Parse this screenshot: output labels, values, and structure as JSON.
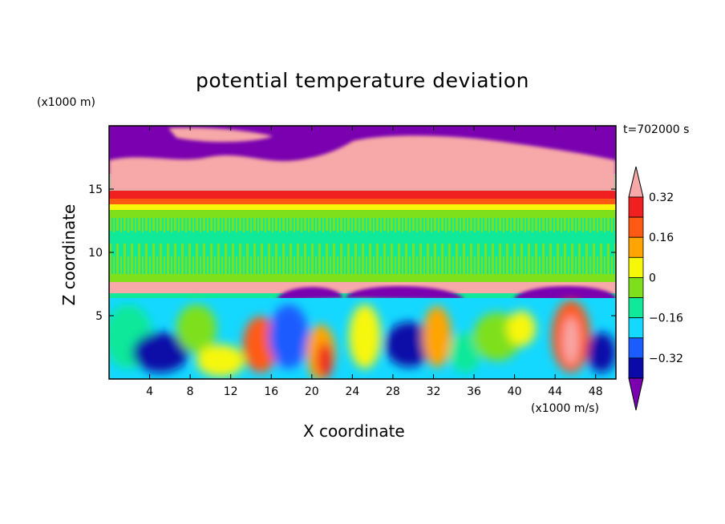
{
  "chart_data": {
    "type": "heatmap",
    "title": "potential temperature deviation",
    "xlabel": "X coordinate",
    "ylabel": "Z coordinate",
    "x_unit": "(x1000 m/s)",
    "y_unit": "(x1000 m)",
    "time_label": "t=702000 s",
    "xlim": [
      0,
      50
    ],
    "ylim": [
      0,
      20
    ],
    "x_ticks": [
      4,
      8,
      12,
      16,
      20,
      24,
      28,
      32,
      36,
      40,
      44,
      48
    ],
    "y_ticks": [
      5,
      10,
      15
    ],
    "colorbar": {
      "labels": [
        0.32,
        0.16,
        0,
        -0.16,
        -0.32
      ],
      "label_text": [
        "0.32",
        "0.16",
        "0",
        "−0.16",
        "−0.32"
      ],
      "levels": [
        -0.4,
        -0.32,
        -0.24,
        -0.16,
        -0.08,
        0,
        0.08,
        0.16,
        0.24,
        0.32,
        0.4
      ],
      "colors": [
        "#7a00b0",
        "#0a0aa8",
        "#1a5cff",
        "#14d8ff",
        "#10e89a",
        "#7ee01a",
        "#f7f70a",
        "#ffa400",
        "#ff5a14",
        "#f02020",
        "#f7a8a8"
      ],
      "extend": "both"
    },
    "layers": [
      {
        "z": [
          18,
          20
        ],
        "description": "mostly below -0.4",
        "dominant": "#7a00b0"
      },
      {
        "z": [
          15.5,
          18
        ],
        "description": "mixed strong positive and negative",
        "dominant": "#f7a8a8"
      },
      {
        "z": [
          14,
          15
        ],
        "description": "strong positive band",
        "dominant": "#f02020"
      },
      {
        "z": [
          8,
          13.5
        ],
        "description": "near zero",
        "dominant": "#10e89a"
      },
      {
        "z": [
          7.3,
          7.9
        ],
        "description": "strong positive band",
        "dominant": "#f7a8a8"
      },
      {
        "z": [
          0,
          7
        ],
        "description": "turbulent eddies",
        "dominant": "#10e89a"
      }
    ]
  }
}
